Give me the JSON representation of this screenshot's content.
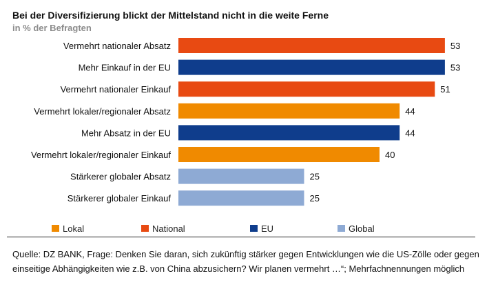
{
  "chart_data": {
    "type": "bar",
    "orientation": "horizontal",
    "title": "Bei der Diversifizierung blickt der Mittelstand nicht in die weite Ferne",
    "subtitle": "in % der Befragten",
    "categories": [
      "Vermehrt nationaler Absatz",
      "Mehr Einkauf in der EU",
      "Vermehrt nationaler Einkauf",
      "Vermehrt lokaler/regionaler Absatz",
      "Mehr Absatz in der EU",
      "Vermehrt lokaler/regionaler Einkauf",
      "Stärkerer globaler Absatz",
      "Stärkerer globaler Einkauf"
    ],
    "values": [
      53,
      53,
      51,
      44,
      44,
      40,
      25,
      25
    ],
    "groups": [
      "National",
      "EU",
      "National",
      "Lokal",
      "EU",
      "Lokal",
      "Global",
      "Global"
    ],
    "legend": [
      {
        "name": "Lokal",
        "color": "#f08a00"
      },
      {
        "name": "National",
        "color": "#e84a12"
      },
      {
        "name": "EU",
        "color": "#0f3d8c"
      },
      {
        "name": "Global",
        "color": "#8eaad4"
      }
    ],
    "legend_placement": "bottom",
    "xlim": [
      0,
      55
    ],
    "grid": false,
    "source": "Quelle: DZ BANK, Frage: Denken Sie daran, sich zukünftig stärker gegen Entwicklungen wie die US-Zölle oder gegen einseitige Abhängigkeiten wie z.B. von China abzusichern? Wir planen vermehrt …“; Mehrfachnennungen möglich"
  }
}
